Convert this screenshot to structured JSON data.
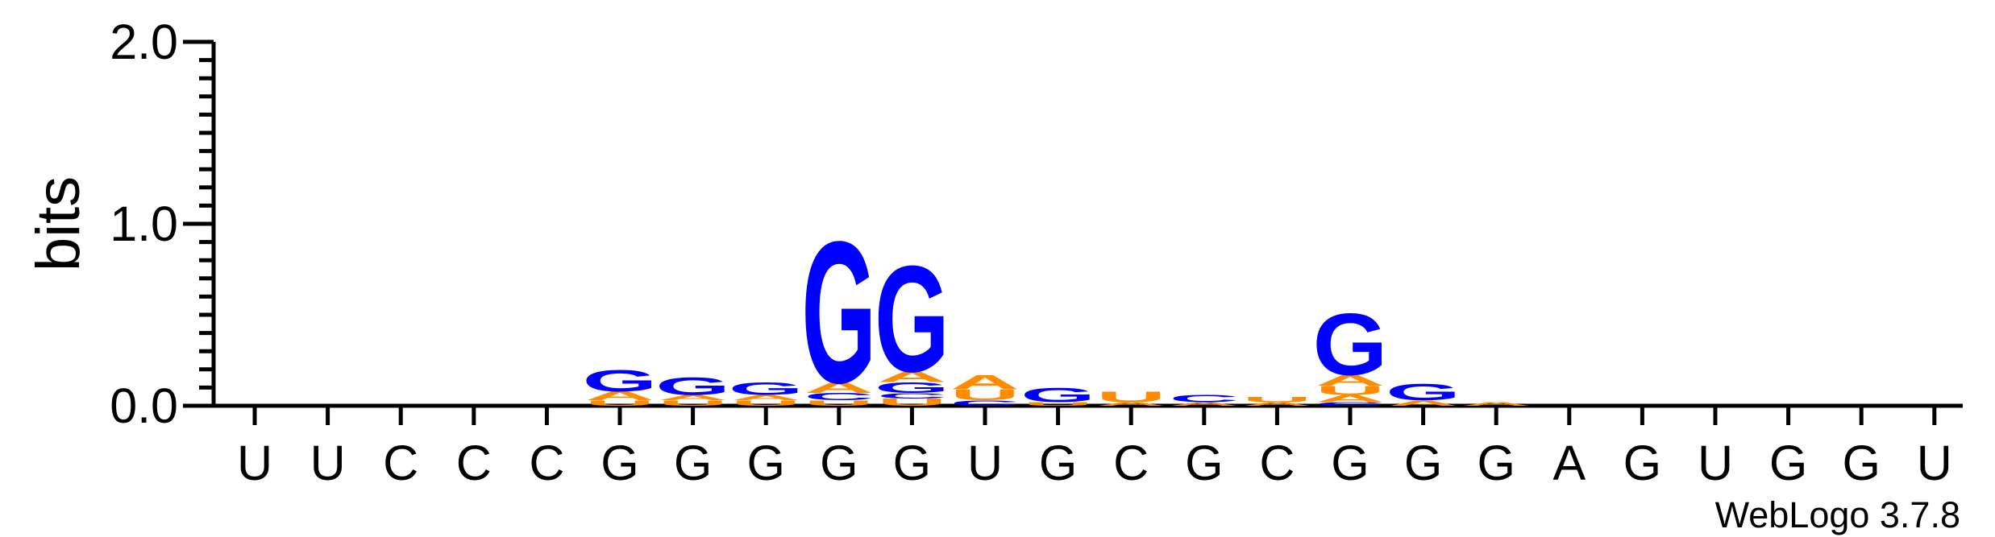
{
  "chart_data": {
    "type": "sequence-logo",
    "ylabel": "bits",
    "ylim": [
      0,
      2.0
    ],
    "yticks": [
      "0.0",
      "1.0",
      "2.0"
    ],
    "x_labels": [
      "U",
      "U",
      "C",
      "C",
      "C",
      "G",
      "G",
      "G",
      "G",
      "G",
      "U",
      "G",
      "C",
      "G",
      "C",
      "G",
      "G",
      "G",
      "A",
      "G",
      "U",
      "G",
      "G",
      "U"
    ],
    "colors": {
      "G": "#0000ff",
      "A": "#ff8c00",
      "U": "#ff8c00",
      "C": "#0000ff"
    },
    "positions": [
      [],
      [],
      [],
      [],
      [],
      [
        {
          "letter": "U",
          "bits": 0.03
        },
        {
          "letter": "A",
          "bits": 0.05
        },
        {
          "letter": "G",
          "bits": 0.12
        }
      ],
      [
        {
          "letter": "U",
          "bits": 0.03
        },
        {
          "letter": "A",
          "bits": 0.03
        },
        {
          "letter": "G",
          "bits": 0.1
        }
      ],
      [
        {
          "letter": "U",
          "bits": 0.03
        },
        {
          "letter": "A",
          "bits": 0.03
        },
        {
          "letter": "G",
          "bits": 0.07
        }
      ],
      [
        {
          "letter": "U",
          "bits": 0.03
        },
        {
          "letter": "C",
          "bits": 0.04
        },
        {
          "letter": "A",
          "bits": 0.06
        },
        {
          "letter": "G",
          "bits": 0.8
        }
      ],
      [
        {
          "letter": "U",
          "bits": 0.04
        },
        {
          "letter": "C",
          "bits": 0.03
        },
        {
          "letter": "G",
          "bits": 0.06
        },
        {
          "letter": "A",
          "bits": 0.06
        },
        {
          "letter": "G",
          "bits": 0.6
        }
      ],
      [
        {
          "letter": "C",
          "bits": 0.03
        },
        {
          "letter": "U",
          "bits": 0.06
        },
        {
          "letter": "A",
          "bits": 0.08
        }
      ],
      [
        {
          "letter": "U",
          "bits": 0.02
        },
        {
          "letter": "G",
          "bits": 0.08
        }
      ],
      [
        {
          "letter": "A",
          "bits": 0.02
        },
        {
          "letter": "U",
          "bits": 0.06
        }
      ],
      [
        {
          "letter": "A",
          "bits": 0.02
        },
        {
          "letter": "C",
          "bits": 0.04
        }
      ],
      [
        {
          "letter": "A",
          "bits": 0.02
        },
        {
          "letter": "U",
          "bits": 0.03
        }
      ],
      [
        {
          "letter": "C",
          "bits": 0.02
        },
        {
          "letter": "A",
          "bits": 0.04
        },
        {
          "letter": "U",
          "bits": 0.05
        },
        {
          "letter": "A",
          "bits": 0.06
        },
        {
          "letter": "G",
          "bits": 0.35
        }
      ],
      [
        {
          "letter": "A",
          "bits": 0.03
        },
        {
          "letter": "G",
          "bits": 0.09
        }
      ],
      [
        {
          "letter": "A",
          "bits": 0.02
        }
      ],
      [],
      [],
      [],
      [],
      [],
      []
    ]
  },
  "credit": "WebLogo 3.7.8"
}
